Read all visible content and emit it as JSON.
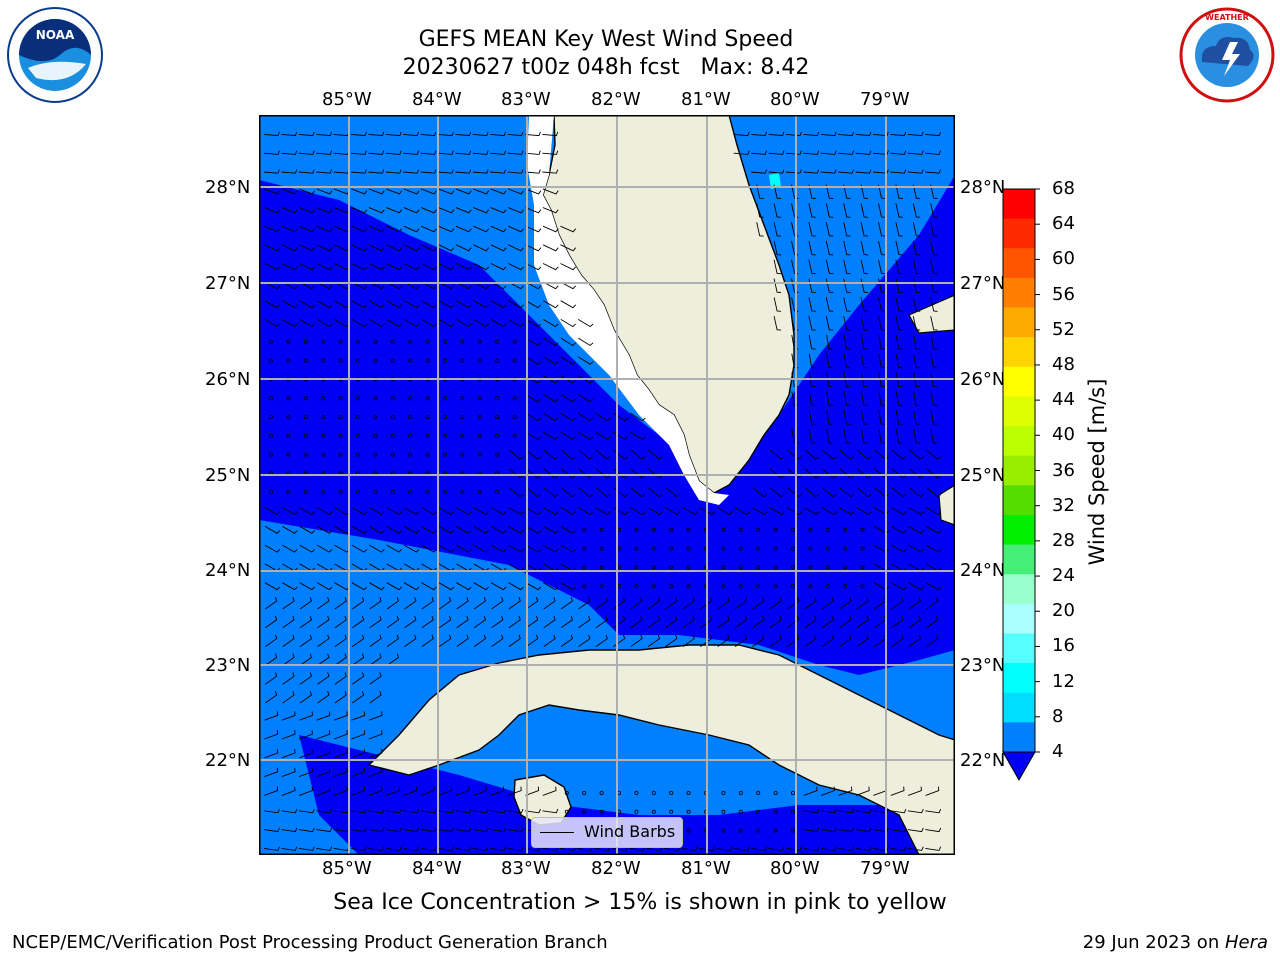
{
  "title": {
    "line1": "GEFS MEAN Key West Wind Speed",
    "line2": "20230627 t00z 048h fcst   Max: 8.42"
  },
  "axes": {
    "lon_labels": [
      "85°W",
      "84°W",
      "83°W",
      "82°W",
      "81°W",
      "80°W",
      "79°W"
    ],
    "lat_labels": [
      "28°N",
      "27°N",
      "26°N",
      "25°N",
      "24°N",
      "23°N",
      "22°N"
    ]
  },
  "map": {
    "region": "Florida Keys and Cuba",
    "land_color": "#eeeedc",
    "coast_color": "#000000",
    "grid_color": "#b0b0b0",
    "wind_band_colors": {
      "4-8": "#0000f5",
      "8-12": "#0080ff",
      "12-16": "#00ffff"
    }
  },
  "colorbar": {
    "label": "Wind Speed [m/s]",
    "ticks": [
      "68",
      "64",
      "60",
      "56",
      "52",
      "48",
      "44",
      "40",
      "36",
      "32",
      "28",
      "24",
      "20",
      "16",
      "12",
      "8",
      "4"
    ],
    "colors": [
      "#ff0000",
      "#ff2a00",
      "#ff5500",
      "#ff8000",
      "#ffaa00",
      "#ffd400",
      "#ffff00",
      "#ddff00",
      "#bbff00",
      "#99ee00",
      "#55dd00",
      "#00ee00",
      "#44ee77",
      "#99ffcc",
      "#aaffff",
      "#55ffff",
      "#00ffff",
      "#00ddff",
      "#0080ff"
    ],
    "extend_color": "#0000f5"
  },
  "legend": {
    "label": "Wind Barbs"
  },
  "caption": "Sea Ice Concentration > 15% is shown in pink to yellow",
  "footer": {
    "left": "NCEP/EMC/Verification Post Processing Product Generation Branch",
    "right_date": "29 Jun 2023 on ",
    "right_host": "Hera"
  },
  "logos": {
    "noaa": "NOAA",
    "nws": "NATIONAL WEATHER SERVICE"
  }
}
